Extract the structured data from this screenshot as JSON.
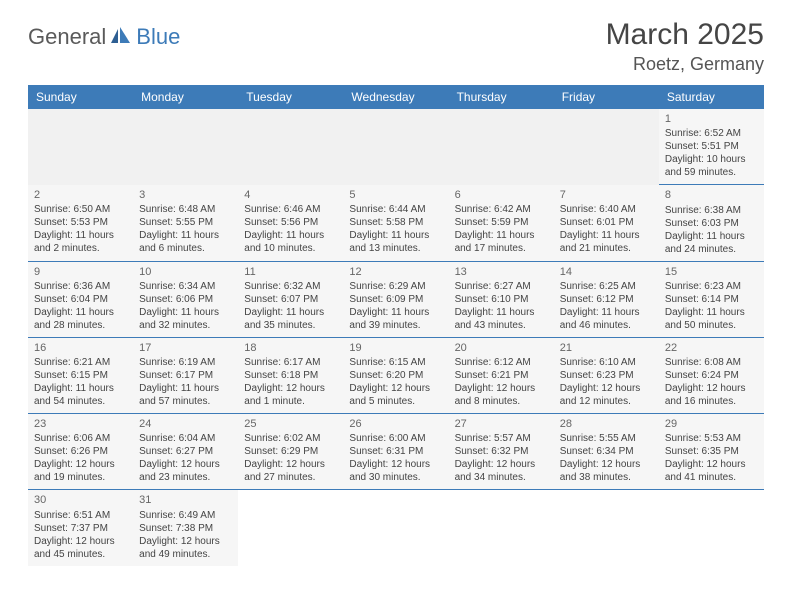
{
  "logo": {
    "name": "General",
    "blue": "Blue"
  },
  "title": "March 2025",
  "location": "Roetz, Germany",
  "dayHeaders": [
    "Sunday",
    "Monday",
    "Tuesday",
    "Wednesday",
    "Thursday",
    "Friday",
    "Saturday"
  ],
  "colors": {
    "headerBg": "#3d7bb8",
    "headerText": "#ffffff",
    "rowBorder": "#3d7bb8",
    "cellBg": "#f6f6f6"
  },
  "weeks": [
    [
      null,
      null,
      null,
      null,
      null,
      null,
      {
        "d": "1",
        "sr": "Sunrise: 6:52 AM",
        "ss": "Sunset: 5:51 PM",
        "dl1": "Daylight: 10 hours",
        "dl2": "and 59 minutes."
      }
    ],
    [
      {
        "d": "2",
        "sr": "Sunrise: 6:50 AM",
        "ss": "Sunset: 5:53 PM",
        "dl1": "Daylight: 11 hours",
        "dl2": "and 2 minutes."
      },
      {
        "d": "3",
        "sr": "Sunrise: 6:48 AM",
        "ss": "Sunset: 5:55 PM",
        "dl1": "Daylight: 11 hours",
        "dl2": "and 6 minutes."
      },
      {
        "d": "4",
        "sr": "Sunrise: 6:46 AM",
        "ss": "Sunset: 5:56 PM",
        "dl1": "Daylight: 11 hours",
        "dl2": "and 10 minutes."
      },
      {
        "d": "5",
        "sr": "Sunrise: 6:44 AM",
        "ss": "Sunset: 5:58 PM",
        "dl1": "Daylight: 11 hours",
        "dl2": "and 13 minutes."
      },
      {
        "d": "6",
        "sr": "Sunrise: 6:42 AM",
        "ss": "Sunset: 5:59 PM",
        "dl1": "Daylight: 11 hours",
        "dl2": "and 17 minutes."
      },
      {
        "d": "7",
        "sr": "Sunrise: 6:40 AM",
        "ss": "Sunset: 6:01 PM",
        "dl1": "Daylight: 11 hours",
        "dl2": "and 21 minutes."
      },
      {
        "d": "8",
        "sr": "Sunrise: 6:38 AM",
        "ss": "Sunset: 6:03 PM",
        "dl1": "Daylight: 11 hours",
        "dl2": "and 24 minutes."
      }
    ],
    [
      {
        "d": "9",
        "sr": "Sunrise: 6:36 AM",
        "ss": "Sunset: 6:04 PM",
        "dl1": "Daylight: 11 hours",
        "dl2": "and 28 minutes."
      },
      {
        "d": "10",
        "sr": "Sunrise: 6:34 AM",
        "ss": "Sunset: 6:06 PM",
        "dl1": "Daylight: 11 hours",
        "dl2": "and 32 minutes."
      },
      {
        "d": "11",
        "sr": "Sunrise: 6:32 AM",
        "ss": "Sunset: 6:07 PM",
        "dl1": "Daylight: 11 hours",
        "dl2": "and 35 minutes."
      },
      {
        "d": "12",
        "sr": "Sunrise: 6:29 AM",
        "ss": "Sunset: 6:09 PM",
        "dl1": "Daylight: 11 hours",
        "dl2": "and 39 minutes."
      },
      {
        "d": "13",
        "sr": "Sunrise: 6:27 AM",
        "ss": "Sunset: 6:10 PM",
        "dl1": "Daylight: 11 hours",
        "dl2": "and 43 minutes."
      },
      {
        "d": "14",
        "sr": "Sunrise: 6:25 AM",
        "ss": "Sunset: 6:12 PM",
        "dl1": "Daylight: 11 hours",
        "dl2": "and 46 minutes."
      },
      {
        "d": "15",
        "sr": "Sunrise: 6:23 AM",
        "ss": "Sunset: 6:14 PM",
        "dl1": "Daylight: 11 hours",
        "dl2": "and 50 minutes."
      }
    ],
    [
      {
        "d": "16",
        "sr": "Sunrise: 6:21 AM",
        "ss": "Sunset: 6:15 PM",
        "dl1": "Daylight: 11 hours",
        "dl2": "and 54 minutes."
      },
      {
        "d": "17",
        "sr": "Sunrise: 6:19 AM",
        "ss": "Sunset: 6:17 PM",
        "dl1": "Daylight: 11 hours",
        "dl2": "and 57 minutes."
      },
      {
        "d": "18",
        "sr": "Sunrise: 6:17 AM",
        "ss": "Sunset: 6:18 PM",
        "dl1": "Daylight: 12 hours",
        "dl2": "and 1 minute."
      },
      {
        "d": "19",
        "sr": "Sunrise: 6:15 AM",
        "ss": "Sunset: 6:20 PM",
        "dl1": "Daylight: 12 hours",
        "dl2": "and 5 minutes."
      },
      {
        "d": "20",
        "sr": "Sunrise: 6:12 AM",
        "ss": "Sunset: 6:21 PM",
        "dl1": "Daylight: 12 hours",
        "dl2": "and 8 minutes."
      },
      {
        "d": "21",
        "sr": "Sunrise: 6:10 AM",
        "ss": "Sunset: 6:23 PM",
        "dl1": "Daylight: 12 hours",
        "dl2": "and 12 minutes."
      },
      {
        "d": "22",
        "sr": "Sunrise: 6:08 AM",
        "ss": "Sunset: 6:24 PM",
        "dl1": "Daylight: 12 hours",
        "dl2": "and 16 minutes."
      }
    ],
    [
      {
        "d": "23",
        "sr": "Sunrise: 6:06 AM",
        "ss": "Sunset: 6:26 PM",
        "dl1": "Daylight: 12 hours",
        "dl2": "and 19 minutes."
      },
      {
        "d": "24",
        "sr": "Sunrise: 6:04 AM",
        "ss": "Sunset: 6:27 PM",
        "dl1": "Daylight: 12 hours",
        "dl2": "and 23 minutes."
      },
      {
        "d": "25",
        "sr": "Sunrise: 6:02 AM",
        "ss": "Sunset: 6:29 PM",
        "dl1": "Daylight: 12 hours",
        "dl2": "and 27 minutes."
      },
      {
        "d": "26",
        "sr": "Sunrise: 6:00 AM",
        "ss": "Sunset: 6:31 PM",
        "dl1": "Daylight: 12 hours",
        "dl2": "and 30 minutes."
      },
      {
        "d": "27",
        "sr": "Sunrise: 5:57 AM",
        "ss": "Sunset: 6:32 PM",
        "dl1": "Daylight: 12 hours",
        "dl2": "and 34 minutes."
      },
      {
        "d": "28",
        "sr": "Sunrise: 5:55 AM",
        "ss": "Sunset: 6:34 PM",
        "dl1": "Daylight: 12 hours",
        "dl2": "and 38 minutes."
      },
      {
        "d": "29",
        "sr": "Sunrise: 5:53 AM",
        "ss": "Sunset: 6:35 PM",
        "dl1": "Daylight: 12 hours",
        "dl2": "and 41 minutes."
      }
    ],
    [
      {
        "d": "30",
        "sr": "Sunrise: 6:51 AM",
        "ss": "Sunset: 7:37 PM",
        "dl1": "Daylight: 12 hours",
        "dl2": "and 45 minutes."
      },
      {
        "d": "31",
        "sr": "Sunrise: 6:49 AM",
        "ss": "Sunset: 7:38 PM",
        "dl1": "Daylight: 12 hours",
        "dl2": "and 49 minutes."
      },
      null,
      null,
      null,
      null,
      null
    ]
  ]
}
